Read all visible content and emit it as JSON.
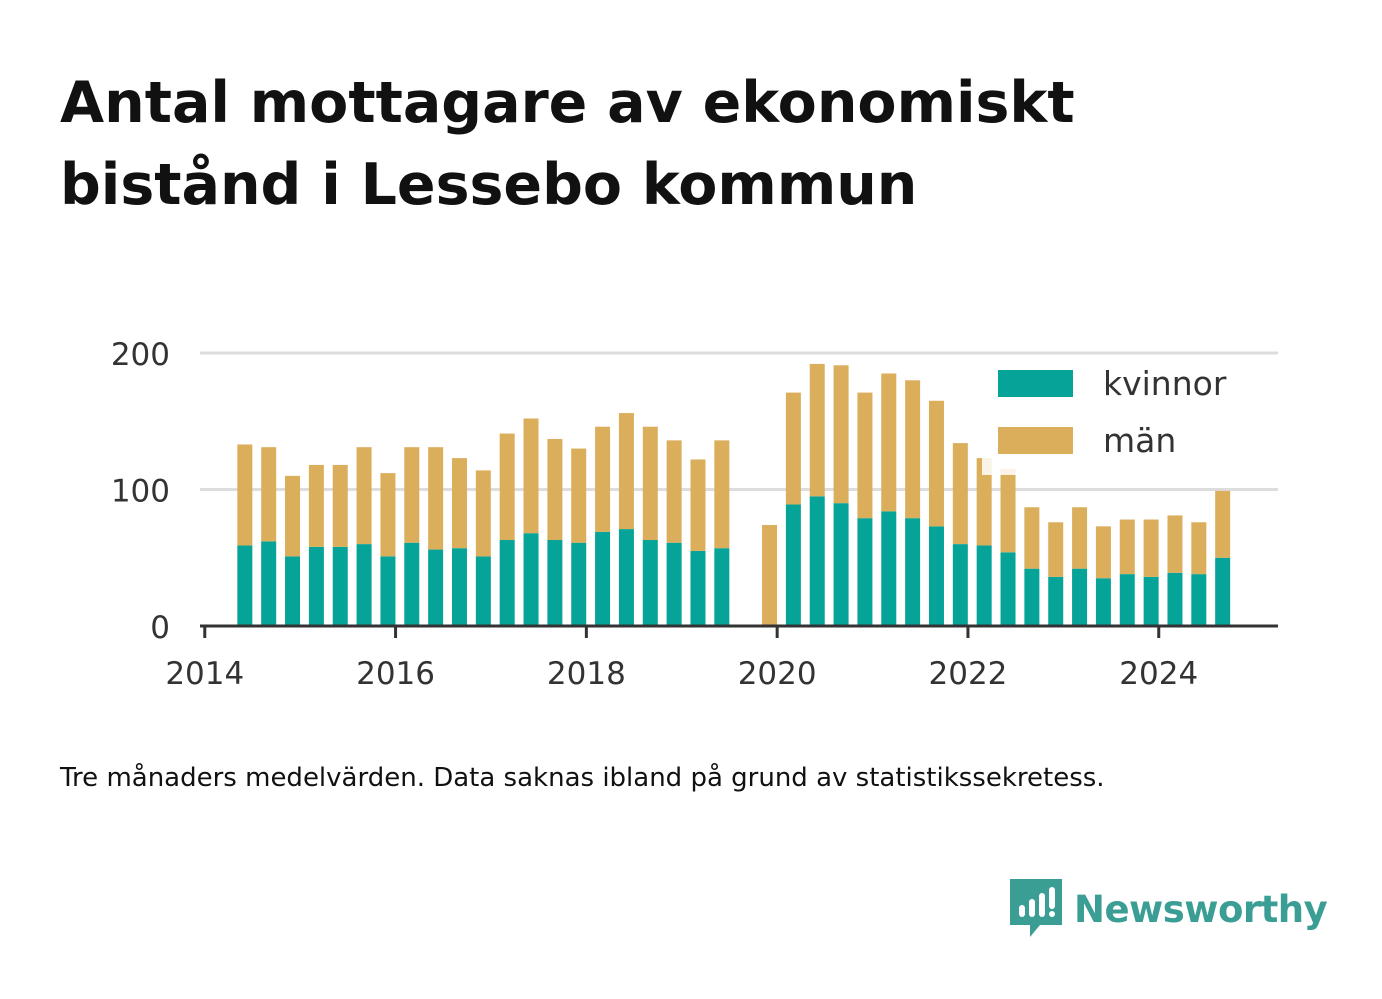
{
  "title_lines": [
    "Antal mottagare av ekonomiskt",
    "bistånd i Lessebo kommun"
  ],
  "note": "Tre månaders medelvärden. Data saknas ibland på grund av statistikssekretess.",
  "brand": {
    "name": "Newsworthy",
    "icon": "newsworthy-logo-icon",
    "color": "#3b9e94"
  },
  "chart_data": {
    "type": "bar",
    "stacked": true,
    "x": [
      2014.42,
      2014.67,
      2014.92,
      2015.17,
      2015.42,
      2015.67,
      2015.92,
      2016.17,
      2016.42,
      2016.67,
      2016.92,
      2017.17,
      2017.42,
      2017.67,
      2017.92,
      2018.17,
      2018.42,
      2018.67,
      2018.92,
      2019.17,
      2019.42,
      2019.67,
      2019.92,
      2020.17,
      2020.42,
      2020.67,
      2020.92,
      2021.17,
      2021.42,
      2021.67,
      2021.92,
      2022.17,
      2022.42,
      2022.67,
      2022.92,
      2023.17,
      2023.42,
      2023.67,
      2023.92,
      2024.17,
      2024.42,
      2024.67
    ],
    "series": [
      {
        "name": "kvinnor",
        "color": "#06a398",
        "values": [
          59,
          62,
          51,
          58,
          58,
          60,
          51,
          61,
          56,
          57,
          51,
          63,
          68,
          63,
          61,
          69,
          71,
          63,
          61,
          55,
          57,
          null,
          0,
          89,
          95,
          90,
          79,
          84,
          79,
          73,
          60,
          59,
          54,
          42,
          36,
          42,
          35,
          38,
          36,
          39,
          38,
          50
        ]
      },
      {
        "name": "män",
        "color": "#dbae5b",
        "values": [
          74,
          69,
          59,
          60,
          60,
          71,
          61,
          70,
          75,
          66,
          63,
          78,
          84,
          74,
          69,
          77,
          85,
          83,
          75,
          67,
          79,
          null,
          74,
          82,
          97,
          101,
          92,
          101,
          101,
          92,
          74,
          64,
          61,
          45,
          40,
          45,
          38,
          40,
          42,
          42,
          38,
          49
        ]
      }
    ],
    "xticks": [
      2014,
      2016,
      2018,
      2020,
      2022,
      2024
    ],
    "xtick_labels": [
      "2014",
      "2016",
      "2018",
      "2020",
      "2022",
      "2024"
    ],
    "yticks": [
      0,
      100,
      200
    ],
    "ytick_labels": [
      "0",
      "100",
      "200"
    ],
    "xlim": [
      2013.95,
      2025.25
    ],
    "ylim": [
      0,
      200
    ],
    "grid": true,
    "legend_position": "top-right"
  }
}
